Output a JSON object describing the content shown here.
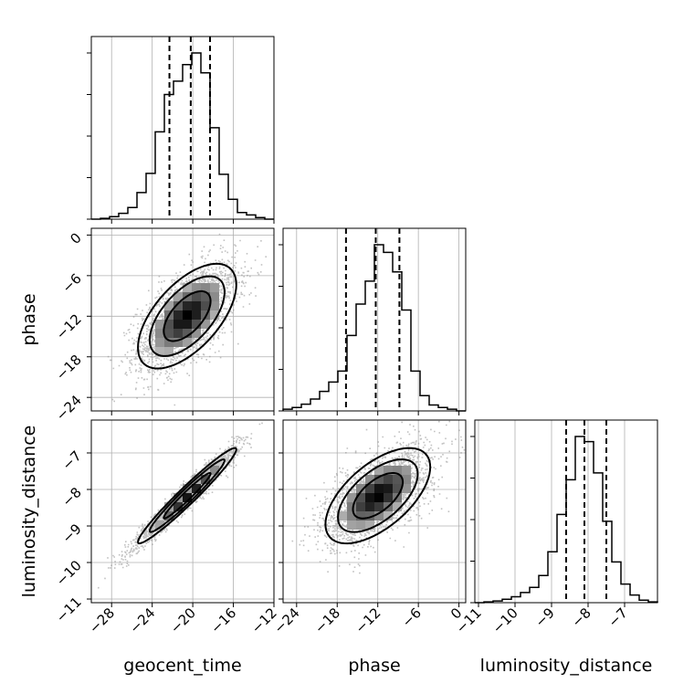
{
  "chart_data": {
    "type": "corner",
    "parameters": [
      "geocent_time",
      "phase",
      "luminosity_distance"
    ],
    "axis_labels": {
      "x": [
        "geocent_time",
        "phase",
        "luminosity_distance"
      ],
      "y": [
        "",
        "phase",
        "luminosity_distance"
      ]
    },
    "ranges": {
      "geocent_time": [
        -30,
        -12
      ],
      "phase": [
        -26,
        1
      ],
      "luminosity_distance": [
        -11.1,
        -6.1
      ]
    },
    "ticks": {
      "geocent_time": {
        "values": [
          -28,
          -24,
          -20,
          -16,
          -12
        ],
        "labels": [
          "−28",
          "−24",
          "−20",
          "−16",
          "−12"
        ]
      },
      "phase": {
        "values": [
          -24,
          -18,
          -12,
          -6,
          0
        ],
        "labels": [
          "−24",
          "−18",
          "−12",
          "−6",
          "0"
        ]
      },
      "luminosity_distance": {
        "values": [
          -11,
          -10,
          -9,
          -8,
          -7
        ],
        "labels": [
          "−11",
          "−10",
          "−9",
          "−8",
          "−7"
        ]
      }
    },
    "grid": true,
    "quantiles": {
      "geocent_time": [
        -22.3,
        -20.2,
        -18.3
      ],
      "phase": [
        -16.7,
        -12.3,
        -8.8
      ],
      "luminosity_distance": [
        -8.6,
        -8.1,
        -7.5
      ]
    },
    "histograms": {
      "geocent_time": {
        "edges": [
          -30,
          -29.1,
          -28.2,
          -27.3,
          -26.4,
          -25.5,
          -24.6,
          -23.7,
          -22.8,
          -21.9,
          -21,
          -20.1,
          -19.2,
          -18.3,
          -17.4,
          -16.5,
          -15.6,
          -14.7,
          -13.8,
          -12.9,
          -12
        ],
        "counts": [
          0,
          1,
          3,
          7,
          14,
          32,
          55,
          105,
          150,
          166,
          186,
          200,
          176,
          110,
          54,
          24,
          8,
          5,
          2,
          0
        ]
      },
      "phase": {
        "edges": [
          -26,
          -24.65,
          -23.3,
          -21.95,
          -20.6,
          -19.25,
          -17.9,
          -16.55,
          -15.2,
          -13.85,
          -12.5,
          -11.15,
          -9.8,
          -8.45,
          -7.1,
          -5.75,
          -4.4,
          -3.05,
          -1.7,
          -0.35,
          1
        ],
        "counts": [
          2,
          4,
          8,
          14,
          23,
          34,
          47,
          89,
          126,
          153,
          196,
          187,
          164,
          119,
          47,
          18,
          7,
          4,
          2,
          0
        ]
      },
      "luminosity_distance": {
        "edges": [
          -11.1,
          -10.85,
          -10.6,
          -10.35,
          -10.1,
          -9.85,
          -9.6,
          -9.35,
          -9.1,
          -8.85,
          -8.6,
          -8.35,
          -8.1,
          -7.85,
          -7.6,
          -7.35,
          -7.1,
          -6.85,
          -6.6,
          -6.35,
          -6.1
        ],
        "counts": [
          0,
          1,
          2,
          4,
          7,
          12,
          18,
          32,
          60,
          104,
          145,
          196,
          190,
          153,
          96,
          48,
          22,
          9,
          3,
          1
        ]
      }
    },
    "correlations": {
      "phase|geocent_time": 0.6,
      "luminosity_distance|geocent_time": 0.97,
      "luminosity_distance|phase": 0.6
    },
    "contour_sigmas": [
      1.0,
      1.6,
      2.1
    ]
  }
}
